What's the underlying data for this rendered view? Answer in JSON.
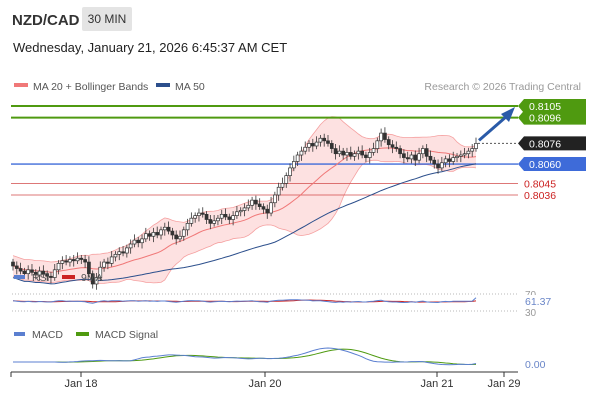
{
  "header": {
    "symbol": "NZD/CAD",
    "interval": "30 MIN",
    "datetime": "Wednesday, January 21, 2026 6:45:37 AM CET"
  },
  "legend": {
    "ma20_label": "MA 20 + Bollinger Bands",
    "ma50_label": "MA 50",
    "credit": "Research © 2026 Trading Central"
  },
  "colors": {
    "green": "#4f9a10",
    "blue": "#3e6bd9",
    "red": "#d24a4a",
    "pink": "#f07878",
    "navy": "#2c4f8c",
    "dark": "#222222",
    "arrow": "#2a5aa8"
  },
  "chart_data": [
    {
      "type": "candlestick",
      "title": "NZD/CAD",
      "timeframe": "30 MIN",
      "x_ticks": [
        "Jan 18",
        "Jan 20",
        "Jan 21",
        "Jan 29"
      ],
      "y_range": [
        0.796,
        0.8108
      ],
      "series": [
        {
          "name": "MA 20 + Bollinger Bands",
          "color": "#f07878"
        },
        {
          "name": "MA 50",
          "color": "#2c4f8c"
        }
      ],
      "levels": [
        {
          "label": "0.8105",
          "kind": "resistance",
          "color": "#4f9a10"
        },
        {
          "label": "0.8096",
          "kind": "resistance",
          "color": "#4f9a10"
        },
        {
          "label": "0.8076",
          "kind": "last",
          "color": "#222222"
        },
        {
          "label": "0.8060",
          "kind": "pivot",
          "color": "#3e6bd9"
        },
        {
          "label": "0.8045",
          "kind": "support",
          "color": "#d24a4a"
        },
        {
          "label": "0.8036",
          "kind": "support",
          "color": "#d24a4a"
        }
      ],
      "closes": [
        0.7981,
        0.7979,
        0.7977,
        0.7975,
        0.7978,
        0.7976,
        0.7974,
        0.7977,
        0.7975,
        0.7973,
        0.7972,
        0.7978,
        0.7983,
        0.7985,
        0.7984,
        0.7986,
        0.7985,
        0.7987,
        0.7986,
        0.7984,
        0.7975,
        0.7967,
        0.7972,
        0.798,
        0.7984,
        0.7983,
        0.7988,
        0.799,
        0.7992,
        0.7991,
        0.7995,
        0.7998,
        0.8001,
        0.7999,
        0.8002,
        0.8006,
        0.8004,
        0.8007,
        0.8005,
        0.8009,
        0.8011,
        0.8008,
        0.8005,
        0.8002,
        0.8004,
        0.8009,
        0.8014,
        0.8018,
        0.802,
        0.8022,
        0.8021,
        0.8017,
        0.8014,
        0.8016,
        0.8018,
        0.8021,
        0.8019,
        0.8017,
        0.802,
        0.8023,
        0.8024,
        0.8026,
        0.8028,
        0.8032,
        0.8029,
        0.8027,
        0.8025,
        0.8022,
        0.803,
        0.8036,
        0.8042,
        0.8045,
        0.8051,
        0.8057,
        0.8062,
        0.8067,
        0.807,
        0.8073,
        0.8076,
        0.8074,
        0.8077,
        0.808,
        0.8078,
        0.8076,
        0.8072,
        0.8068,
        0.807,
        0.8067,
        0.8069,
        0.8066,
        0.8068,
        0.807,
        0.8067,
        0.8065,
        0.8069,
        0.8072,
        0.8078,
        0.8084,
        0.8079,
        0.8075,
        0.8073,
        0.8072,
        0.8068,
        0.8065,
        0.8064,
        0.8067,
        0.8063,
        0.8068,
        0.8072,
        0.8066,
        0.8063,
        0.806,
        0.8057,
        0.8061,
        0.8064,
        0.8062,
        0.8065,
        0.8066,
        0.8067,
        0.8068,
        0.807,
        0.8072,
        0.8076
      ]
    },
    {
      "type": "line",
      "title": "RSI",
      "series": [
        {
          "name": "RSI",
          "color": "#5b7fd0"
        },
        {
          "name": "9MA",
          "color": "#cc2222"
        }
      ],
      "y_ticks": [
        "70",
        "30"
      ],
      "last_value": "61.37"
    },
    {
      "type": "line",
      "title": "MACD",
      "series": [
        {
          "name": "MACD",
          "color": "#5b7fd0"
        },
        {
          "name": "MACD Signal",
          "color": "#4f9a10"
        }
      ],
      "last_value": "0.00"
    }
  ]
}
